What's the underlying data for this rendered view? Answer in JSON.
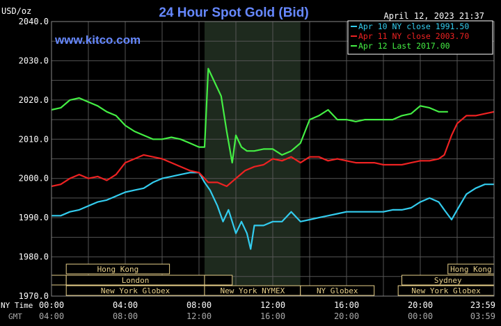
{
  "chart_data": {
    "type": "line",
    "title": "24 Hour Spot Gold (Bid)",
    "ylabel": "USD/oz",
    "watermark": "www.kitco.com",
    "timestamp": "April 12, 2023 21:37",
    "ylim": [
      1970,
      2040
    ],
    "y_ticks": [
      "2040.0",
      "2030.0",
      "2020.0",
      "2010.0",
      "2000.0",
      "1990.0",
      "1980.0",
      "1970.0"
    ],
    "xlim": [
      0,
      24
    ],
    "x_ticks_ny": [
      "00:00",
      "04:00",
      "08:00",
      "12:00",
      "16:00",
      "20:00",
      "23:59"
    ],
    "x_ticks_gmt": [
      "04:00",
      "08:00",
      "12:00",
      "16:00",
      "20:00",
      "00:00",
      "03:59"
    ],
    "x_axis_label_ny": "NY Time",
    "x_axis_label_gmt": "GMT",
    "grid": true,
    "legend_position": "top-right",
    "shaded_region_hours": [
      8.3,
      13.5
    ],
    "sessions": [
      {
        "label": "Hong Kong",
        "start": 0.8,
        "end": 6.4,
        "row": 0
      },
      {
        "label": "",
        "start": 0,
        "end": 0.8,
        "row": 1
      },
      {
        "label": "London",
        "start": 0.8,
        "end": 8.3,
        "row": 1
      },
      {
        "label": "",
        "start": 8.3,
        "end": 9.8,
        "row": 1
      },
      {
        "label": "New York Globex",
        "start": 0.8,
        "end": 8.3,
        "row": 2
      },
      {
        "label": "New York NYMEX",
        "start": 8.3,
        "end": 13.5,
        "row": 2
      },
      {
        "label": "NY Globex",
        "start": 13.5,
        "end": 17.5,
        "row": 2
      },
      {
        "label": "Hong Kong",
        "start": 21.5,
        "end": 24,
        "row": 0
      },
      {
        "label": "Sydney",
        "start": 19,
        "end": 24,
        "row": 1
      },
      {
        "label": "New York Globex",
        "start": 18.8,
        "end": 24,
        "row": 2
      }
    ],
    "series": [
      {
        "name": "Apr 10 NY close 1991.50",
        "color": "#33ccee",
        "x": [
          0,
          0.5,
          1,
          1.5,
          2,
          2.5,
          3,
          3.5,
          4,
          4.5,
          5,
          5.5,
          6,
          6.5,
          7,
          7.5,
          8,
          8.3,
          8.6,
          9,
          9.3,
          9.6,
          10,
          10.3,
          10.6,
          10.8,
          11,
          11.5,
          12,
          12.5,
          13,
          13.5,
          14,
          14.5,
          15,
          15.5,
          16,
          16.5,
          17,
          17.5,
          18,
          18.5,
          19,
          19.5,
          20,
          20.5,
          21,
          21.3,
          21.7,
          22,
          22.5,
          23,
          23.5,
          24
        ],
        "y": [
          1990.5,
          1990.5,
          1991.5,
          1992,
          1993,
          1994,
          1994.5,
          1995.5,
          1996.5,
          1997,
          1997.5,
          1999,
          2000,
          2000.5,
          2001,
          2001.5,
          2001.5,
          1999,
          1997,
          1993,
          1989,
          1992,
          1986,
          1989,
          1986,
          1982,
          1988,
          1988,
          1989,
          1989,
          1991.5,
          1989,
          1989.5,
          1990,
          1990.5,
          1991,
          1991.5,
          1991.5,
          1991.5,
          1991.5,
          1991.5,
          1992,
          1992,
          1992.5,
          1994,
          1995,
          1994,
          1992,
          1989.5,
          1992,
          1996,
          1997.5,
          1998.5,
          1998.5
        ]
      },
      {
        "name": "Apr 11 NY close 2003.70",
        "color": "#ee2222",
        "x": [
          0,
          0.5,
          1,
          1.5,
          2,
          2.5,
          3,
          3.5,
          4,
          4.5,
          5,
          5.5,
          6,
          6.5,
          7,
          7.5,
          8,
          8.5,
          9,
          9.5,
          10,
          10.5,
          11,
          11.5,
          12,
          12.5,
          13,
          13.5,
          14,
          14.5,
          15,
          15.5,
          16,
          16.5,
          17,
          17.5,
          18,
          18.5,
          19,
          19.5,
          20,
          20.5,
          21,
          21.3,
          21.7,
          22,
          22.5,
          23,
          23.5,
          24
        ],
        "y": [
          1998,
          1998.5,
          2000,
          2001,
          2000,
          2000.5,
          1999.5,
          2001,
          2004,
          2005,
          2006,
          2005.5,
          2005,
          2004,
          2003,
          2002,
          2001.5,
          1999,
          1999,
          1998,
          2000,
          2002,
          2003,
          2003.5,
          2005,
          2004.5,
          2005.5,
          2004,
          2005.5,
          2005.5,
          2004.5,
          2005,
          2004.5,
          2004,
          2004,
          2004,
          2003.5,
          2003.5,
          2003.5,
          2004,
          2004.5,
          2004.5,
          2005,
          2006,
          2011,
          2014,
          2016,
          2016,
          2016.5,
          2017
        ]
      },
      {
        "name": "Apr 12 Last 2017.00",
        "color": "#44ee44",
        "x": [
          0,
          0.5,
          1,
          1.5,
          2,
          2.5,
          3,
          3.5,
          4,
          4.5,
          5,
          5.5,
          6,
          6.5,
          7,
          7.5,
          8,
          8.3,
          8.5,
          8.8,
          9.2,
          9.5,
          9.8,
          10,
          10.3,
          10.6,
          11,
          11.5,
          12,
          12.5,
          13,
          13.5,
          14,
          14.5,
          15,
          15.5,
          16,
          16.5,
          17,
          17.5,
          18,
          18.5,
          19,
          19.5,
          20,
          20.5,
          21,
          21.5
        ],
        "y": [
          2017.5,
          2018,
          2020,
          2020.5,
          2019.5,
          2018.5,
          2017,
          2016,
          2013.5,
          2012,
          2011,
          2010,
          2010,
          2010.5,
          2010,
          2009,
          2008,
          2008,
          2028,
          2025,
          2021,
          2012,
          2004,
          2011,
          2008,
          2007,
          2007,
          2007.5,
          2007.5,
          2006,
          2007,
          2009,
          2015,
          2016,
          2017.5,
          2015,
          2015,
          2014.5,
          2015,
          2015,
          2015,
          2015,
          2016,
          2016.5,
          2018.5,
          2018,
          2017,
          2017
        ]
      }
    ]
  }
}
